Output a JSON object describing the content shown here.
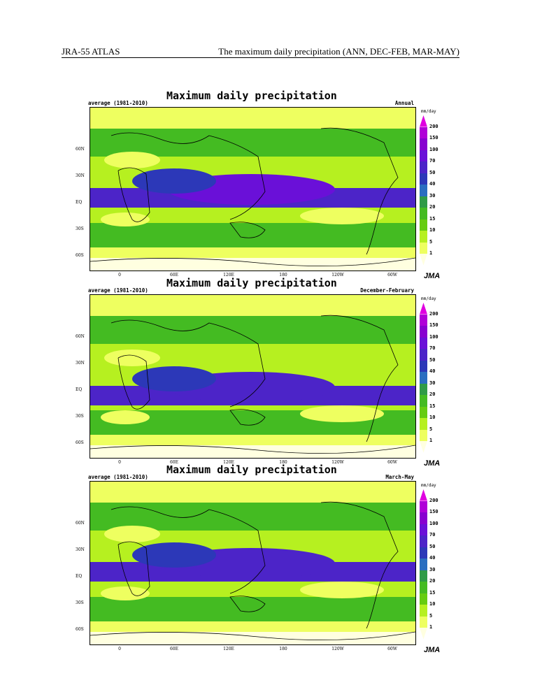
{
  "header": {
    "left": "JRA-55 ATLAS",
    "right": "The maximum daily precipitation (ANN, DEC-FEB, MAR-MAY)"
  },
  "panels": [
    {
      "title": "Maximum daily precipitation",
      "period": "average (1981-2010)",
      "season": "Annual"
    },
    {
      "title": "Maximum daily precipitation",
      "period": "average (1981-2010)",
      "season": "December-February"
    },
    {
      "title": "Maximum daily precipitation",
      "period": "average (1981-2010)",
      "season": "March-May"
    }
  ],
  "latitudes": [
    "60N",
    "30N",
    "EQ",
    "30S",
    "60S"
  ],
  "longitudes": [
    "0",
    "60E",
    "120E",
    "180",
    "120W",
    "60W"
  ],
  "colorbar": {
    "unit": "mm/day",
    "levels": [
      "200",
      "150",
      "100",
      "70",
      "50",
      "40",
      "30",
      "20",
      "15",
      "10",
      "5",
      "1"
    ],
    "colors": [
      "#e000e0",
      "#b000d8",
      "#8800d0",
      "#6a10d8",
      "#4c24c8",
      "#2c38b8",
      "#2a6ec0",
      "#2f9b47",
      "#44bb22",
      "#66cc11",
      "#b6f020",
      "#eeff60",
      "#ffffe0"
    ]
  },
  "logo": "JMA"
}
